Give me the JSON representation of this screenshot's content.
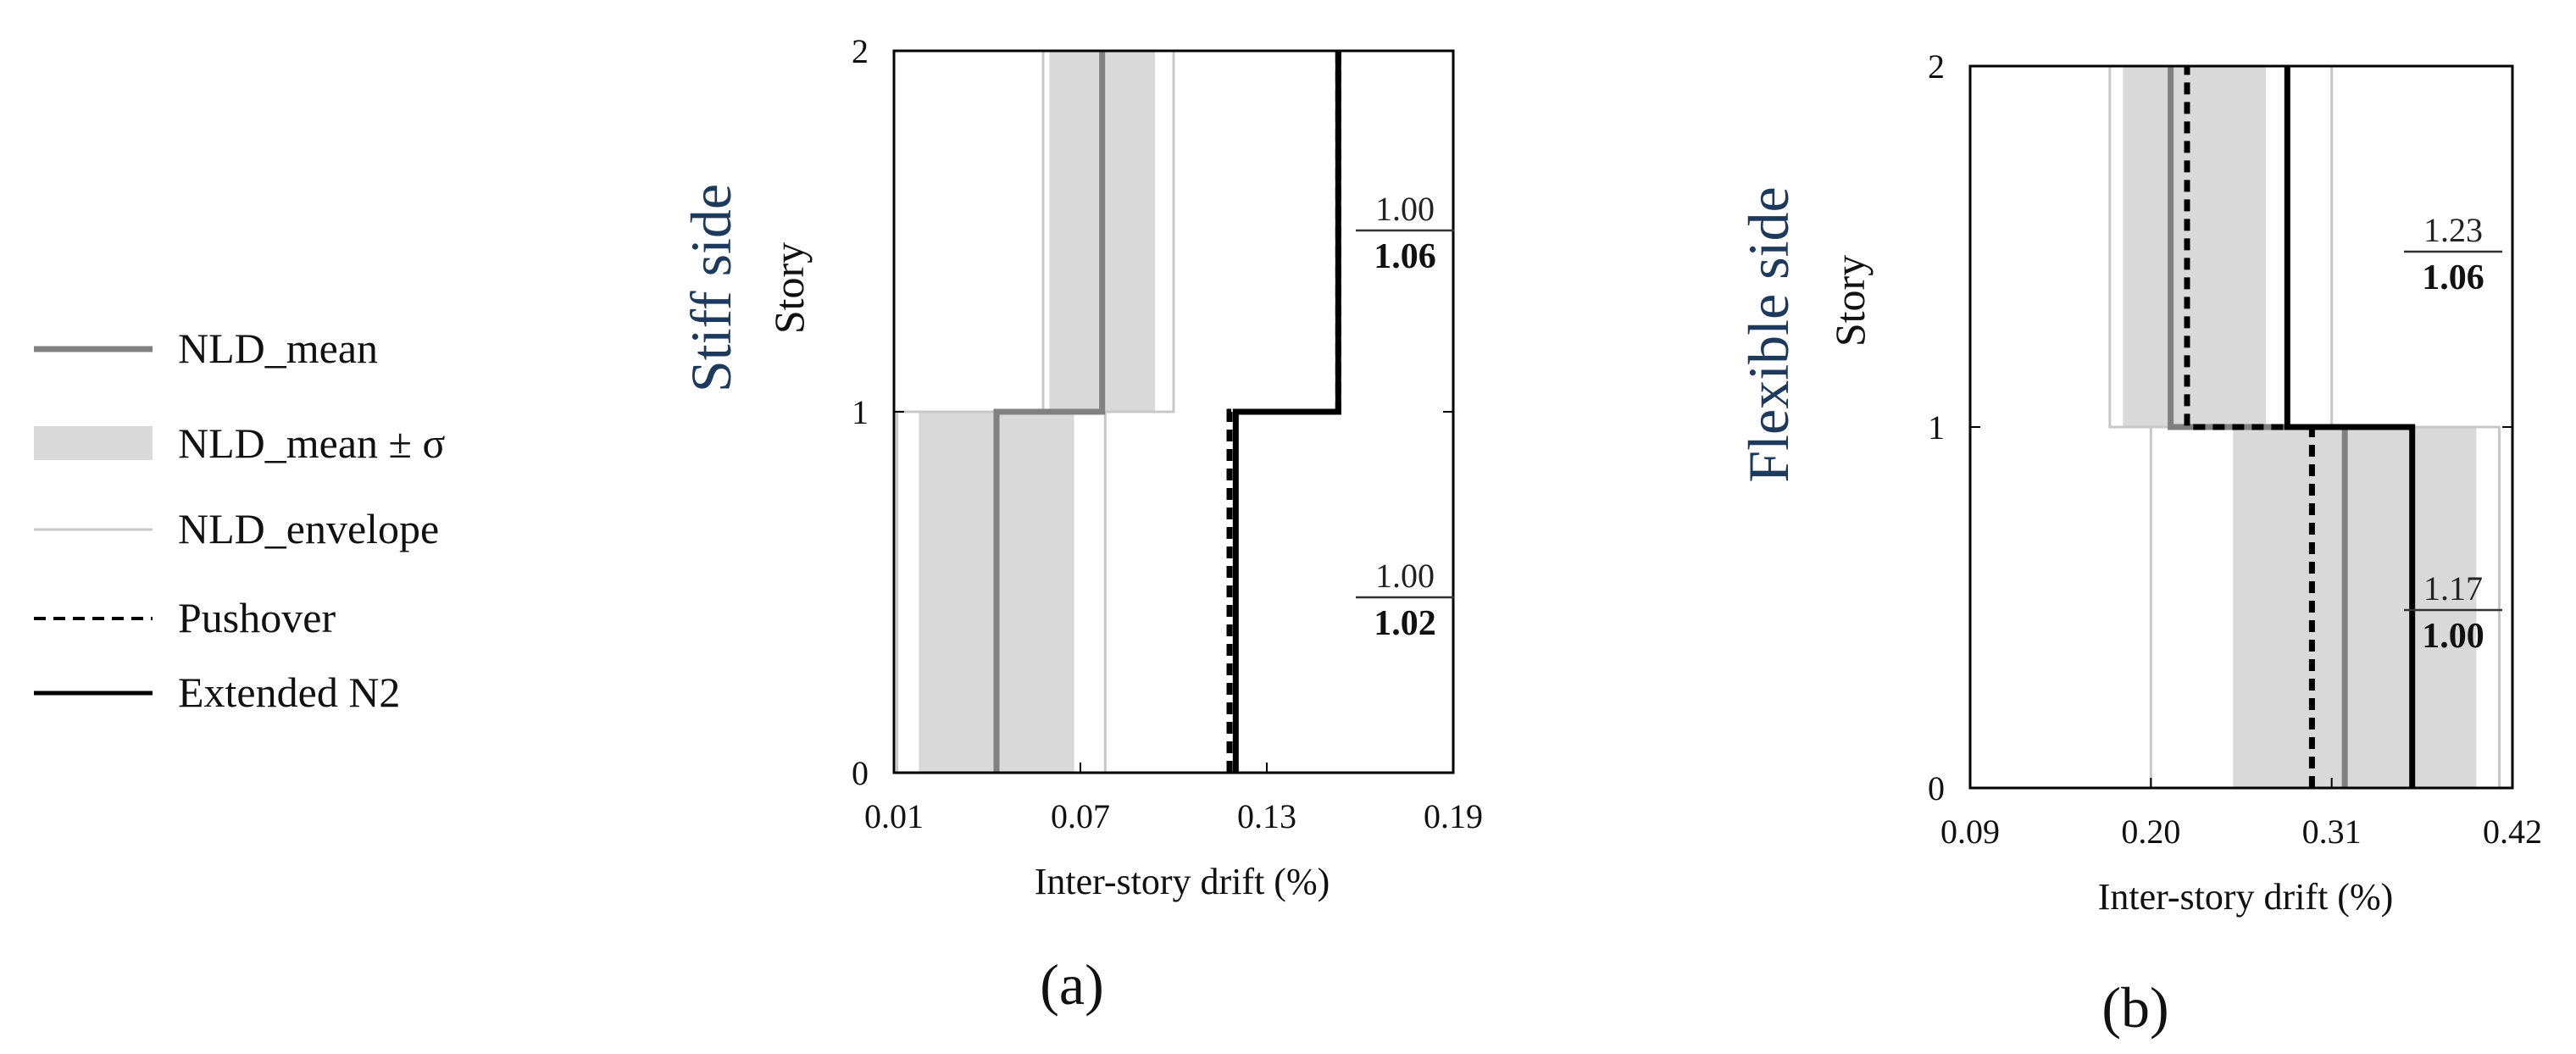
{
  "legend": {
    "items": [
      {
        "label": "NLD_mean",
        "style": "mean"
      },
      {
        "label": "NLD_mean ± σ",
        "style": "band"
      },
      {
        "label": "NLD_envelope",
        "style": "envelope"
      },
      {
        "label": "Pushover",
        "style": "pushover"
      },
      {
        "label": "Extended N2",
        "style": "n2"
      }
    ]
  },
  "colors": {
    "mean": "#808080",
    "band": "#d9d9d9",
    "envelope": "#c8c8c8",
    "pushover": "#000000",
    "n2": "#000000",
    "side_title": "#1d3a5c"
  },
  "chart_data": [
    {
      "type": "line",
      "panel_label": "(a)",
      "side_title": "Stiff side",
      "xlabel": "Inter-story drift (%)",
      "ylabel": "Story",
      "xlim": [
        0.01,
        0.19
      ],
      "ylim": [
        0,
        2
      ],
      "xticks": [
        "0.01",
        "0.07",
        "0.13",
        "0.19"
      ],
      "yticks": [
        "0",
        "1",
        "2"
      ],
      "series": [
        {
          "name": "NLD_mean",
          "stories": [
            {
              "y": [
                0,
                1
              ],
              "x": 0.043
            },
            {
              "y": [
                1,
                2
              ],
              "x": 0.077
            }
          ]
        },
        {
          "name": "NLD_mean ± σ",
          "stories": [
            {
              "y": [
                0,
                1
              ],
              "x": [
                0.018,
                0.068
              ]
            },
            {
              "y": [
                1,
                2
              ],
              "x": [
                0.06,
                0.094
              ]
            }
          ]
        },
        {
          "name": "NLD_envelope",
          "stories": [
            {
              "y": [
                0,
                1
              ],
              "x": [
                0.011,
                0.078
              ]
            },
            {
              "y": [
                1,
                2
              ],
              "x": [
                0.058,
                0.1
              ]
            }
          ]
        },
        {
          "name": "Pushover",
          "stories": [
            {
              "y": [
                0,
                1
              ],
              "x": 0.118
            },
            {
              "y": [
                1,
                2
              ],
              "x": 0.153
            }
          ]
        },
        {
          "name": "Extended N2",
          "stories": [
            {
              "y": [
                0,
                1
              ],
              "x": 0.12
            },
            {
              "y": [
                1,
                2
              ],
              "x": 0.153
            }
          ]
        }
      ],
      "annotations": [
        {
          "story": 2,
          "top": "1.00",
          "bottom": "1.06"
        },
        {
          "story": 1,
          "top": "1.00",
          "bottom": "1.02"
        }
      ]
    },
    {
      "type": "line",
      "panel_label": "(b)",
      "side_title": "Flexible side",
      "xlabel": "Inter-story drift (%)",
      "ylabel": "Story",
      "xlim": [
        0.09,
        0.42
      ],
      "ylim": [
        0,
        2
      ],
      "xticks": [
        "0.09",
        "0.20",
        "0.31",
        "0.42"
      ],
      "yticks": [
        "0",
        "1",
        "2"
      ],
      "series": [
        {
          "name": "NLD_mean",
          "stories": [
            {
              "y": [
                0,
                1
              ],
              "x": 0.318
            },
            {
              "y": [
                1,
                2
              ],
              "x": 0.212
            }
          ]
        },
        {
          "name": "NLD_mean ± σ",
          "stories": [
            {
              "y": [
                0,
                1
              ],
              "x": [
                0.25,
                0.398
              ]
            },
            {
              "y": [
                1,
                2
              ],
              "x": [
                0.183,
                0.27
              ]
            }
          ]
        },
        {
          "name": "NLD_envelope",
          "stories": [
            {
              "y": [
                0,
                1
              ],
              "x": [
                0.2,
                0.412
              ]
            },
            {
              "y": [
                1,
                2
              ],
              "x": [
                0.175,
                0.31
              ]
            }
          ]
        },
        {
          "name": "Pushover",
          "stories": [
            {
              "y": [
                0,
                1
              ],
              "x": 0.298
            },
            {
              "y": [
                1,
                2
              ],
              "x": 0.222
            }
          ]
        },
        {
          "name": "Extended N2",
          "stories": [
            {
              "y": [
                0,
                1
              ],
              "x": 0.359
            },
            {
              "y": [
                1,
                2
              ],
              "x": 0.283
            }
          ]
        }
      ],
      "annotations": [
        {
          "story": 2,
          "top": "1.23",
          "bottom": "1.06"
        },
        {
          "story": 1,
          "top": "1.17",
          "bottom": "1.00"
        }
      ]
    }
  ]
}
